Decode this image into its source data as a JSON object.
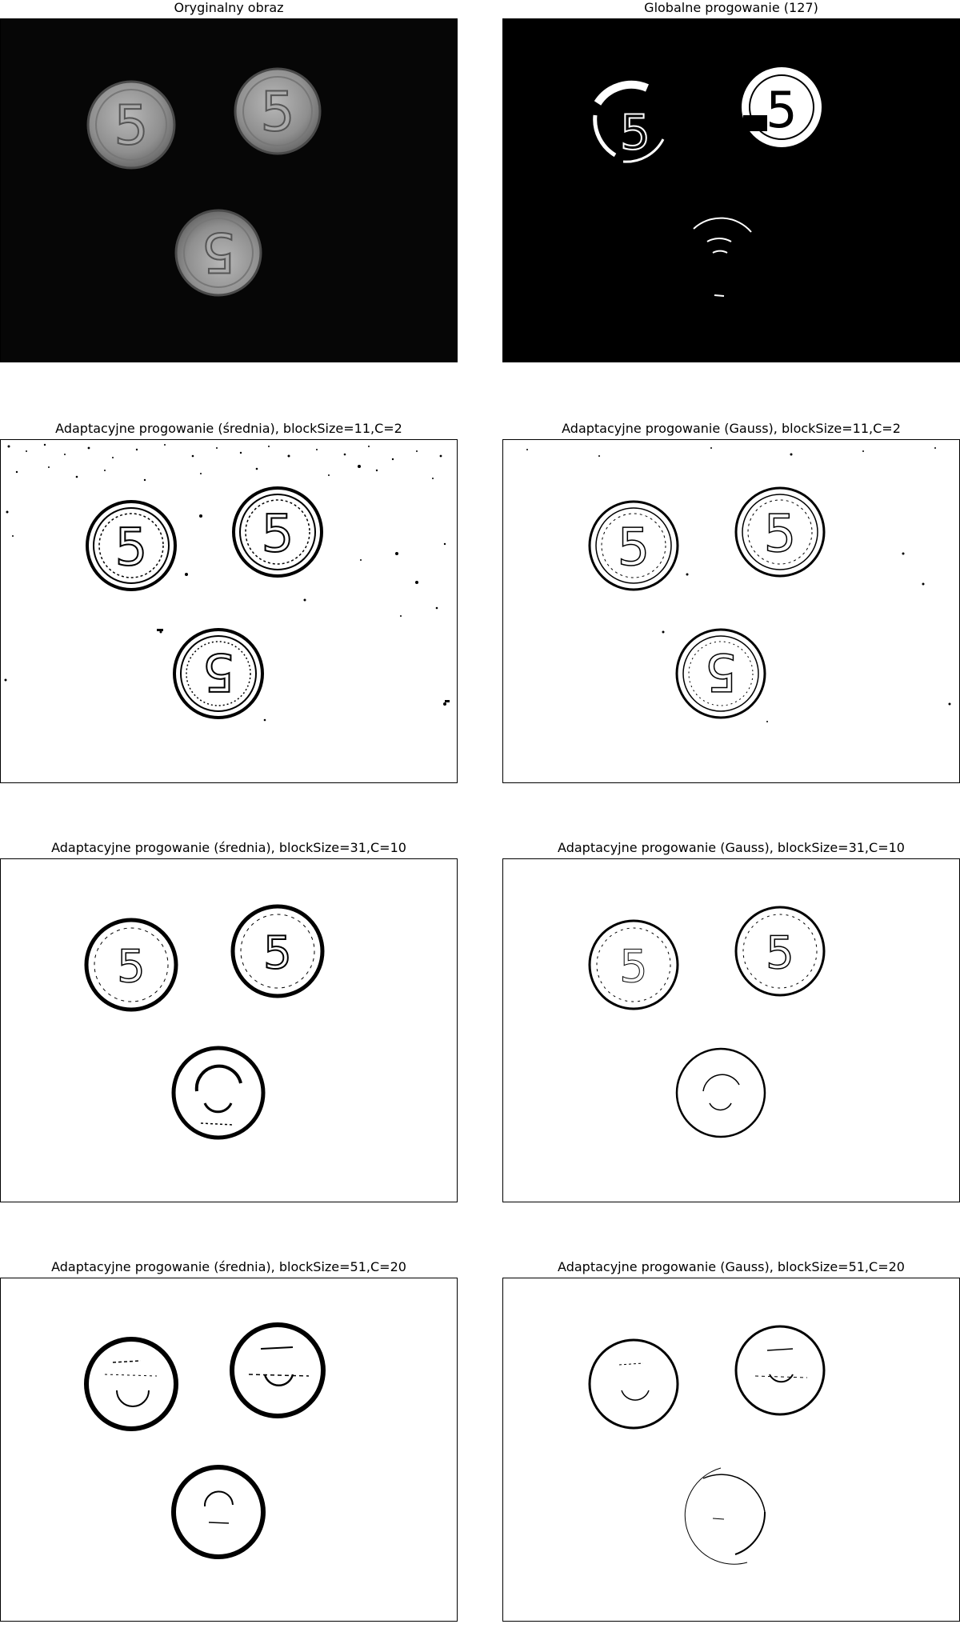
{
  "panels": [
    {
      "title": "Oryginalny obraz",
      "style": "original"
    },
    {
      "title": "Globalne progowanie (127)",
      "style": "global"
    },
    {
      "title": "Adaptacyjne progowanie (średnia), blockSize=11,C=2",
      "style": "mean11"
    },
    {
      "title": "Adaptacyjne progowanie (Gauss), blockSize=11,C=2",
      "style": "gauss11"
    },
    {
      "title": "Adaptacyjne progowanie (średnia), blockSize=31,C=10",
      "style": "mean31"
    },
    {
      "title": "Adaptacyjne progowanie (Gauss), blockSize=31,C=10",
      "style": "gauss31"
    },
    {
      "title": "Adaptacyjne progowanie (średnia), blockSize=51,C=20",
      "style": "mean51"
    },
    {
      "title": "Adaptacyjne progowanie (Gauss), blockSize=51,C=20",
      "style": "gauss51"
    }
  ],
  "colors": {
    "dark_background": "#050505",
    "coin_gray": "#9a9a9a",
    "ink": "#000000",
    "paper": "#ffffff"
  },
  "icons": [
    "coin-image"
  ]
}
